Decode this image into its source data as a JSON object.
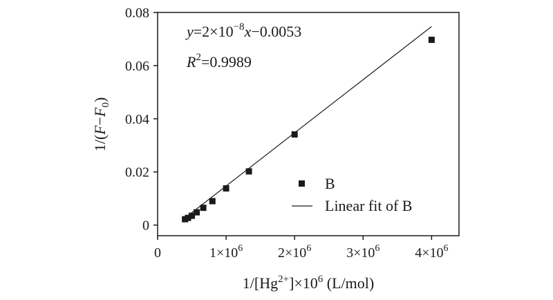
{
  "chart_data": {
    "type": "scatter",
    "xlabel": "1/[Hg²⁺]×10⁶ (L/mol)",
    "ylabel": "1/(F−F₀)",
    "xlim": [
      0,
      4400000
    ],
    "ylim": [
      -0.004,
      0.08
    ],
    "x_ticks": [
      {
        "value": 0,
        "base": "0",
        "sup": ""
      },
      {
        "value": 1000000,
        "base": "1×10",
        "sup": "6"
      },
      {
        "value": 2000000,
        "base": "2×10",
        "sup": "6"
      },
      {
        "value": 3000000,
        "base": "3×10",
        "sup": "6"
      },
      {
        "value": 4000000,
        "base": "4×10",
        "sup": "6"
      }
    ],
    "y_ticks": [
      {
        "value": 0,
        "label": "0"
      },
      {
        "value": 0.02,
        "label": "0.02"
      },
      {
        "value": 0.04,
        "label": "0.04"
      },
      {
        "value": 0.06,
        "label": "0.06"
      },
      {
        "value": 0.08,
        "label": "0.08"
      }
    ],
    "series": [
      {
        "name": "B",
        "marker": "square",
        "color": "#1a1a1a",
        "points": [
          {
            "x": 400000,
            "y": 0.0022
          },
          {
            "x": 444000,
            "y": 0.0027
          },
          {
            "x": 500000,
            "y": 0.0035
          },
          {
            "x": 571000,
            "y": 0.0048
          },
          {
            "x": 667000,
            "y": 0.0065
          },
          {
            "x": 800000,
            "y": 0.009
          },
          {
            "x": 1000000,
            "y": 0.0138
          },
          {
            "x": 1333000,
            "y": 0.0202
          },
          {
            "x": 2000000,
            "y": 0.0341
          },
          {
            "x": 4000000,
            "y": 0.0697
          }
        ]
      }
    ],
    "fit": {
      "name": "Linear fit of B",
      "slope": 2e-08,
      "intercept": -0.0053,
      "x_range": [
        400000,
        4000000
      ],
      "color": "#1a1a1a"
    },
    "annotations": {
      "equation": {
        "y": "y",
        "eq1": "=2×10",
        "exp": "−8",
        "x": "x",
        "eq2": "−0.0053"
      },
      "r2": {
        "r": "R",
        "sup": "2",
        "value": "=0.9989"
      }
    },
    "legend": {
      "position": "bottom-right",
      "entries": [
        "B",
        "Linear fit of B"
      ]
    }
  }
}
